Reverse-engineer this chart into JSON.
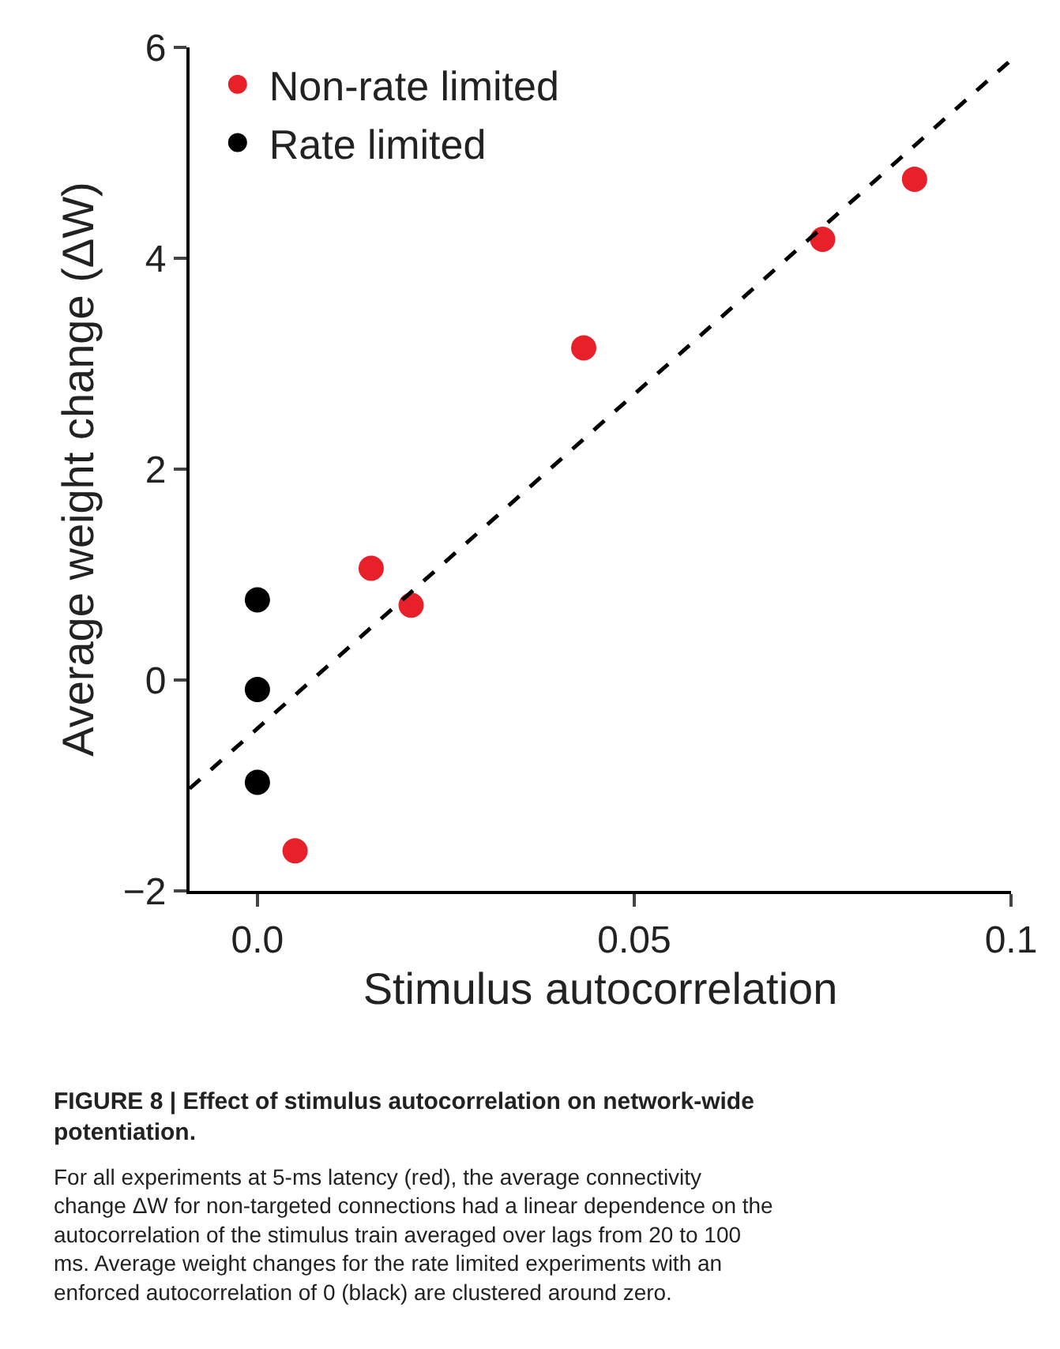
{
  "chart_data": {
    "type": "scatter",
    "title": "FIGURE 8 | Effect of stimulus autocorrelation on network-wide potentiation.",
    "xlabel": "Stimulus autocorrelation",
    "ylabel": "Average weight change (ΔW)",
    "series": [
      {
        "name": "Non-rate limited",
        "color": "#e8202a",
        "x": [
          0.005,
          0.0151,
          0.0204,
          0.0433,
          0.075,
          0.0872
        ],
        "values": [
          -1.62,
          1.06,
          0.71,
          3.15,
          4.18,
          4.75
        ]
      },
      {
        "name": "Rate limited",
        "color": "#000000",
        "x": [
          0,
          0,
          0
        ],
        "values": [
          0.76,
          -0.09,
          -0.97
        ]
      },
      {
        "type": "line",
        "color": "#000000",
        "line_style": "dashed",
        "marker": "none",
        "x": [
          -0.009,
          0.1
        ],
        "values": [
          -1.03,
          5.88
        ]
      }
    ],
    "marker": "circle",
    "xlim": [
      -0.009,
      0.1
    ],
    "xticks": [
      {
        "value": 0,
        "label": "0.0"
      },
      0.05,
      0.1
    ],
    "ylim": [
      -2,
      6
    ],
    "yticks": [
      {
        "value": -2,
        "label": "−2"
      },
      0,
      2,
      4,
      6
    ],
    "legend": "top left",
    "annotations": [
      "For all experiments at 5-ms latency (red), the average connectivity change ΔW for non-targeted connections had a linear dependence on the autocorrelation of the stimulus train averaged over lags from 20 to 100 ms. Average weight changes for the rate limited experiments with an enforced autocorrelation of 0 (black) are clustered around zero."
    ]
  }
}
